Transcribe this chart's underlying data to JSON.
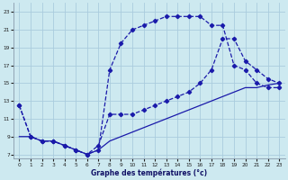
{
  "title": "Graphe des températures (°c)",
  "background_color": "#cde9f0",
  "grid_color": "#aaccdd",
  "line_color": "#1a1aaa",
  "xlim": [
    -0.5,
    23.5
  ],
  "ylim": [
    6.5,
    24.0
  ],
  "xticks": [
    0,
    1,
    2,
    3,
    4,
    5,
    6,
    7,
    8,
    9,
    10,
    11,
    12,
    13,
    14,
    15,
    16,
    17,
    18,
    19,
    20,
    21,
    22,
    23
  ],
  "yticks": [
    7,
    9,
    11,
    13,
    15,
    17,
    19,
    21,
    23
  ],
  "curve1_x": [
    0,
    1,
    2,
    3,
    4,
    5,
    6,
    7,
    8,
    9,
    10,
    11,
    12,
    13,
    14,
    15,
    16,
    17,
    18,
    19,
    20,
    21,
    22,
    23
  ],
  "curve1_y": [
    12.5,
    9.0,
    8.5,
    8.5,
    8.0,
    7.5,
    7.0,
    7.5,
    16.5,
    19.5,
    21.0,
    21.5,
    22.0,
    22.5,
    22.5,
    22.5,
    22.5,
    21.5,
    21.5,
    17.0,
    16.5,
    15.0,
    14.5,
    14.5
  ],
  "curve2_x": [
    0,
    1,
    2,
    3,
    4,
    5,
    6,
    7,
    8,
    9,
    10,
    11,
    12,
    13,
    14,
    15,
    16,
    17,
    18,
    19,
    20,
    21,
    22,
    23
  ],
  "curve2_y": [
    12.5,
    9.0,
    8.5,
    8.5,
    8.0,
    7.5,
    7.0,
    8.0,
    11.5,
    11.5,
    11.5,
    12.0,
    12.5,
    13.0,
    13.5,
    14.0,
    15.0,
    16.5,
    20.0,
    20.0,
    17.5,
    16.5,
    15.5,
    15.0
  ],
  "curve3_x": [
    0,
    1,
    2,
    3,
    4,
    5,
    6,
    7,
    8,
    9,
    10,
    11,
    12,
    13,
    14,
    15,
    16,
    17,
    18,
    19,
    20,
    21,
    22,
    23
  ],
  "curve3_y": [
    9.0,
    9.0,
    8.5,
    8.5,
    8.0,
    7.5,
    7.0,
    7.5,
    8.5,
    9.0,
    9.5,
    10.0,
    10.5,
    11.0,
    11.5,
    12.0,
    12.5,
    13.0,
    13.5,
    14.0,
    14.5,
    14.5,
    14.8,
    15.0
  ]
}
